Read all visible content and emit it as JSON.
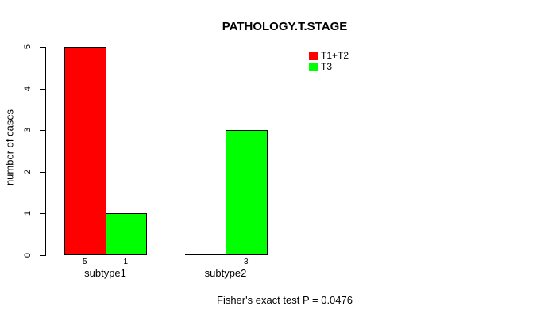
{
  "figure": {
    "title": "PATHOLOGY.T.STAGE",
    "y_axis_label": "number of cases",
    "caption": "Fisher's exact test P = 0.0476"
  },
  "legend": {
    "items": [
      {
        "label": "T1+T2",
        "color": "#ff0000"
      },
      {
        "label": "T3",
        "color": "#00ff00"
      }
    ]
  },
  "chart_data": {
    "type": "bar",
    "title": "PATHOLOGY.T.STAGE",
    "xlabel": "",
    "ylabel": "number of cases",
    "categories": [
      "subtype1",
      "subtype2"
    ],
    "series": [
      {
        "name": "T1+T2",
        "color": "#ff0000",
        "values": [
          5,
          0
        ]
      },
      {
        "name": "T3",
        "color": "#00ff00",
        "values": [
          1,
          3
        ]
      }
    ],
    "bar_value_labels": [
      [
        5,
        null
      ],
      [
        1,
        3
      ]
    ],
    "ylim": [
      0,
      5
    ],
    "y_ticks": [
      0,
      1,
      2,
      3,
      4,
      5
    ],
    "grid": false,
    "legend_position": "top-right",
    "legend_entries": [
      "T1+T2",
      "T3"
    ],
    "annotation": "Fisher's exact test P = 0.0476"
  }
}
